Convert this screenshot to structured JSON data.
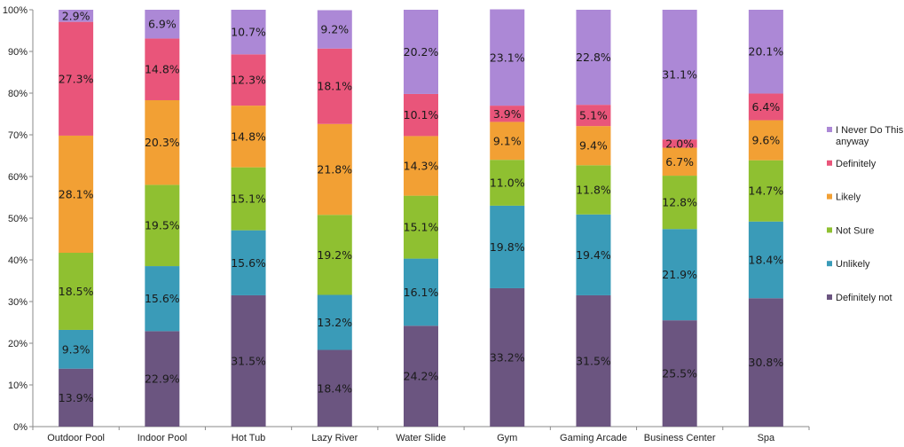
{
  "chart_data": {
    "type": "bar",
    "stacked": true,
    "percent": true,
    "categories": [
      "Outdoor Pool",
      "Indoor Pool",
      "Hot Tub",
      "Lazy River",
      "Water Slide",
      "Gym",
      "Gaming Arcade",
      "Business Center",
      "Spa"
    ],
    "series": [
      {
        "name": "Definitely not",
        "color": "#6B5580",
        "values": [
          13.9,
          22.9,
          31.5,
          18.4,
          24.2,
          33.2,
          31.5,
          25.5,
          30.8
        ],
        "labels": [
          "13.9%",
          "22.9%",
          "31.5%",
          "18.4%",
          "24.2%",
          "33.2%",
          "31.5%",
          "25.5%",
          "30.8%"
        ]
      },
      {
        "name": "Unlikely",
        "color": "#3A9BB8",
        "values": [
          9.3,
          15.6,
          15.6,
          13.2,
          16.1,
          19.8,
          19.4,
          21.9,
          18.4
        ],
        "labels": [
          "9.3%",
          "15.6%",
          "15.6%",
          "13.2%",
          "16.1%",
          "19.8%",
          "19.4%",
          "21.9%",
          "18.4%"
        ]
      },
      {
        "name": "Not Sure",
        "color": "#8FC031",
        "values": [
          18.5,
          19.5,
          15.1,
          19.2,
          15.1,
          11.0,
          11.8,
          12.8,
          14.7
        ],
        "labels": [
          "18.5%",
          "19.5%",
          "15.1%",
          "19.2%",
          "15.1%",
          "11.0%",
          "11.8%",
          "12.8%",
          "14.7%"
        ]
      },
      {
        "name": "Likely",
        "color": "#F2A034",
        "values": [
          28.1,
          20.3,
          14.8,
          21.8,
          14.3,
          9.1,
          9.4,
          6.7,
          9.6
        ],
        "labels": [
          "28.1%",
          "20.3%",
          "14.8%",
          "21.8%",
          "14.3%",
          "9.1%",
          "9.4%",
          "6.7%",
          "9.6%"
        ]
      },
      {
        "name": "Definitely",
        "color": "#E9557A",
        "values": [
          27.3,
          14.8,
          12.3,
          18.1,
          10.1,
          3.9,
          5.1,
          2.0,
          6.4
        ],
        "labels": [
          "27.3%",
          "14.8%",
          "12.3%",
          "18.1%",
          "10.1%",
          "3.9%",
          "5.1%",
          "2.0%",
          "6.4%"
        ]
      },
      {
        "name": "I Never Do This, anyway",
        "legend_lines": [
          "I Never Do This,",
          "anyway"
        ],
        "color": "#AC88D6",
        "values": [
          2.9,
          6.9,
          10.7,
          9.2,
          20.2,
          23.1,
          22.8,
          31.1,
          20.1
        ],
        "labels": [
          "2.9%",
          "6.9%",
          "10.7%",
          "9.2%",
          "20.2%",
          "23.1%",
          "22.8%",
          "31.1%",
          "20.1%"
        ]
      }
    ],
    "ylim": [
      0,
      100
    ],
    "yticks": [
      "0%",
      "10%",
      "20%",
      "30%",
      "40%",
      "50%",
      "60%",
      "70%",
      "80%",
      "90%",
      "100%"
    ],
    "grid": false,
    "legend_position": "right",
    "legend_order": [
      "I Never Do This, anyway",
      "Definitely",
      "Likely",
      "Not Sure",
      "Unlikely",
      "Definitely not"
    ],
    "title": "",
    "xlabel": "",
    "ylabel": ""
  }
}
